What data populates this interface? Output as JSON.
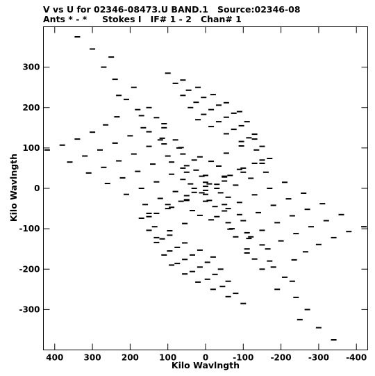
{
  "header": {
    "line1": "V vs U for 02346-08473.U BAND.1   Source:02346-08",
    "line2": "Ants * - *     Stokes I   IF# 1 - 2   Chan# 1"
  },
  "chart_data": {
    "type": "scatter",
    "title": "V vs U for 02346-08473.U BAND.1   Source:02346-08",
    "subtitle": "Ants * - *     Stokes I   IF# 1 - 2   Chan# 1",
    "xlabel": "Kilo Wavlngth",
    "ylabel": "Kilo Wavlngth",
    "xlim": [
      430,
      -430
    ],
    "ylim": [
      -400,
      400
    ],
    "x_reversed": true,
    "xticks": [
      400,
      300,
      200,
      100,
      0,
      -100,
      -200,
      -300,
      -400
    ],
    "xtick_labels": [
      "400",
      "300",
      "200",
      "100",
      "0",
      "-100",
      "-200",
      "-300",
      "-400"
    ],
    "yticks": [
      300,
      200,
      100,
      0,
      -100,
      -200,
      -300
    ],
    "ytick_labels": [
      "300",
      "200",
      "100",
      "0",
      "-100",
      "-200",
      "-300"
    ],
    "marker_color": "#000000",
    "grid": false,
    "series": [
      {
        "arc": [
          [
            420,
            95
          ],
          [
            380,
            107
          ],
          [
            340,
            122
          ],
          [
            300,
            139
          ],
          [
            265,
            157
          ],
          [
            235,
            177
          ]
        ]
      },
      {
        "arc": [
          [
            360,
            65
          ],
          [
            320,
            80
          ],
          [
            280,
            95
          ],
          [
            240,
            112
          ],
          [
            200,
            130
          ],
          [
            165,
            150
          ]
        ]
      },
      {
        "arc": [
          [
            310,
            38
          ],
          [
            270,
            52
          ],
          [
            230,
            68
          ],
          [
            190,
            85
          ],
          [
            150,
            104
          ],
          [
            115,
            124
          ]
        ]
      },
      {
        "arc": [
          [
            260,
            12
          ],
          [
            220,
            26
          ],
          [
            180,
            42
          ],
          [
            140,
            60
          ],
          [
            100,
            80
          ],
          [
            65,
            101
          ]
        ]
      },
      {
        "arc": [
          [
            210,
            -15
          ],
          [
            170,
            0
          ],
          [
            130,
            16
          ],
          [
            90,
            35
          ],
          [
            50,
            56
          ],
          [
            15,
            78
          ]
        ]
      },
      {
        "arc": [
          [
            160,
            -40
          ],
          [
            120,
            -25
          ],
          [
            80,
            -8
          ],
          [
            40,
            11
          ],
          [
            0,
            32
          ],
          [
            -35,
            55
          ]
        ]
      },
      {
        "arc": [
          [
            130,
            -62
          ],
          [
            90,
            -47
          ],
          [
            50,
            -30
          ],
          [
            10,
            -11
          ],
          [
            -30,
            10
          ],
          [
            -65,
            32
          ]
        ]
      },
      {
        "arc": [
          [
            130,
            -122
          ],
          [
            95,
            -105
          ],
          [
            55,
            -87
          ],
          [
            15,
            -67
          ],
          [
            -25,
            -45
          ],
          [
            -60,
            -22
          ]
        ]
      },
      {
        "arc": [
          [
            100,
            285
          ],
          [
            60,
            268
          ],
          [
            20,
            250
          ],
          [
            -20,
            232
          ],
          [
            -55,
            212
          ],
          [
            -90,
            190
          ]
        ]
      },
      {
        "arc": [
          [
            80,
            260
          ],
          [
            45,
            243
          ],
          [
            5,
            225
          ],
          [
            -35,
            206
          ],
          [
            -75,
            186
          ],
          [
            -110,
            165
          ]
        ]
      },
      {
        "arc": [
          [
            60,
            230
          ],
          [
            25,
            213
          ],
          [
            -15,
            195
          ],
          [
            -55,
            176
          ],
          [
            -95,
            155
          ],
          [
            -130,
            134
          ]
        ]
      },
      {
        "arc": [
          [
            40,
            200
          ],
          [
            5,
            183
          ],
          [
            -35,
            165
          ],
          [
            -75,
            146
          ],
          [
            -115,
            125
          ],
          [
            -150,
            104
          ]
        ]
      },
      {
        "arc": [
          [
            20,
            170
          ],
          [
            -15,
            153
          ],
          [
            -55,
            135
          ],
          [
            -95,
            116
          ],
          [
            -135,
            95
          ],
          [
            -170,
            74
          ]
        ]
      },
      {
        "arc": [
          [
            -420,
            -95
          ],
          [
            -380,
            -107
          ],
          [
            -340,
            -122
          ],
          [
            -300,
            -139
          ],
          [
            -265,
            -157
          ],
          [
            -235,
            -177
          ]
        ]
      },
      {
        "arc": [
          [
            -360,
            -65
          ],
          [
            -320,
            -80
          ],
          [
            -280,
            -95
          ],
          [
            -240,
            -112
          ],
          [
            -200,
            -130
          ],
          [
            -165,
            -150
          ]
        ]
      },
      {
        "arc": [
          [
            -310,
            -38
          ],
          [
            -270,
            -52
          ],
          [
            -230,
            -68
          ],
          [
            -190,
            -85
          ],
          [
            -150,
            -104
          ],
          [
            -115,
            -124
          ]
        ]
      },
      {
        "arc": [
          [
            -260,
            -12
          ],
          [
            -220,
            -26
          ],
          [
            -180,
            -42
          ],
          [
            -140,
            -60
          ],
          [
            -100,
            -80
          ],
          [
            -65,
            -101
          ]
        ]
      },
      {
        "arc": [
          [
            -210,
            15
          ],
          [
            -170,
            0
          ],
          [
            -130,
            -16
          ],
          [
            -90,
            -35
          ],
          [
            -50,
            -56
          ],
          [
            -15,
            -78
          ]
        ]
      },
      {
        "arc": [
          [
            -160,
            40
          ],
          [
            -120,
            25
          ],
          [
            -80,
            8
          ],
          [
            -40,
            -11
          ],
          [
            0,
            -32
          ],
          [
            35,
            -55
          ]
        ]
      },
      {
        "arc": [
          [
            -130,
            62
          ],
          [
            -90,
            47
          ],
          [
            -50,
            30
          ],
          [
            -10,
            11
          ],
          [
            30,
            -10
          ],
          [
            65,
            -32
          ]
        ]
      },
      {
        "arc": [
          [
            -130,
            122
          ],
          [
            -95,
            105
          ],
          [
            -55,
            87
          ],
          [
            -15,
            67
          ],
          [
            25,
            45
          ],
          [
            60,
            22
          ]
        ]
      },
      {
        "arc": [
          [
            -100,
            -285
          ],
          [
            -60,
            -268
          ],
          [
            -20,
            -250
          ],
          [
            20,
            -232
          ],
          [
            55,
            -212
          ],
          [
            90,
            -190
          ]
        ]
      },
      {
        "arc": [
          [
            -80,
            -260
          ],
          [
            -45,
            -243
          ],
          [
            -5,
            -225
          ],
          [
            35,
            -206
          ],
          [
            75,
            -186
          ],
          [
            110,
            -165
          ]
        ]
      },
      {
        "arc": [
          [
            -60,
            -230
          ],
          [
            -25,
            -213
          ],
          [
            15,
            -195
          ],
          [
            55,
            -176
          ],
          [
            95,
            -155
          ],
          [
            130,
            -134
          ]
        ]
      },
      {
        "arc": [
          [
            -40,
            -200
          ],
          [
            -5,
            -183
          ],
          [
            35,
            -165
          ],
          [
            75,
            -146
          ],
          [
            115,
            -125
          ],
          [
            150,
            -104
          ]
        ]
      },
      {
        "arc": [
          [
            -20,
            -170
          ],
          [
            15,
            -153
          ],
          [
            55,
            -135
          ],
          [
            95,
            -116
          ],
          [
            135,
            -95
          ],
          [
            170,
            -74
          ]
        ]
      },
      {
        "arc": [
          [
            340,
            375
          ],
          [
            270,
            300
          ],
          [
            210,
            220
          ],
          [
            150,
            140
          ],
          [
            90,
            65
          ],
          [
            30,
            0
          ],
          [
            -30,
            -70
          ],
          [
            -80,
            -120
          ],
          [
            -110,
            -160
          ]
        ]
      },
      {
        "arc": [
          [
            300,
            345
          ],
          [
            240,
            270
          ],
          [
            180,
            195
          ],
          [
            120,
            120
          ],
          [
            60,
            50
          ],
          [
            0,
            -15
          ],
          [
            -60,
            -85
          ],
          [
            -110,
            -150
          ],
          [
            -150,
            -200
          ]
        ]
      },
      {
        "arc": [
          [
            250,
            325
          ],
          [
            190,
            250
          ],
          [
            130,
            175
          ],
          [
            70,
            100
          ],
          [
            10,
            30
          ],
          [
            -50,
            -40
          ],
          [
            -110,
            -110
          ],
          [
            -170,
            -180
          ],
          [
            -230,
            -230
          ]
        ]
      },
      {
        "arc": [
          [
            -340,
            -375
          ],
          [
            -270,
            -300
          ],
          [
            -210,
            -220
          ],
          [
            -150,
            -140
          ],
          [
            -90,
            -65
          ],
          [
            -30,
            0
          ],
          [
            30,
            70
          ],
          [
            80,
            120
          ],
          [
            110,
            160
          ]
        ]
      },
      {
        "arc": [
          [
            -300,
            -345
          ],
          [
            -240,
            -270
          ],
          [
            -180,
            -195
          ],
          [
            -120,
            -120
          ],
          [
            -60,
            -50
          ],
          [
            0,
            15
          ],
          [
            60,
            85
          ],
          [
            110,
            150
          ],
          [
            150,
            200
          ]
        ]
      },
      {
        "arc": [
          [
            -250,
            -325
          ],
          [
            -190,
            -250
          ],
          [
            -130,
            -175
          ],
          [
            -70,
            -100
          ],
          [
            -10,
            -30
          ],
          [
            50,
            40
          ],
          [
            110,
            110
          ],
          [
            170,
            180
          ],
          [
            230,
            230
          ]
        ]
      },
      {
        "arc": [
          [
            150,
            -70
          ],
          [
            100,
            -50
          ],
          [
            50,
            -28
          ],
          [
            0,
            -5
          ],
          [
            -50,
            18
          ],
          [
            -100,
            40
          ],
          [
            -150,
            62
          ]
        ]
      },
      {
        "arc": [
          [
            -150,
            70
          ],
          [
            -100,
            50
          ],
          [
            -50,
            28
          ],
          [
            0,
            5
          ],
          [
            50,
            -18
          ],
          [
            100,
            -40
          ],
          [
            150,
            -62
          ]
        ]
      }
    ]
  }
}
